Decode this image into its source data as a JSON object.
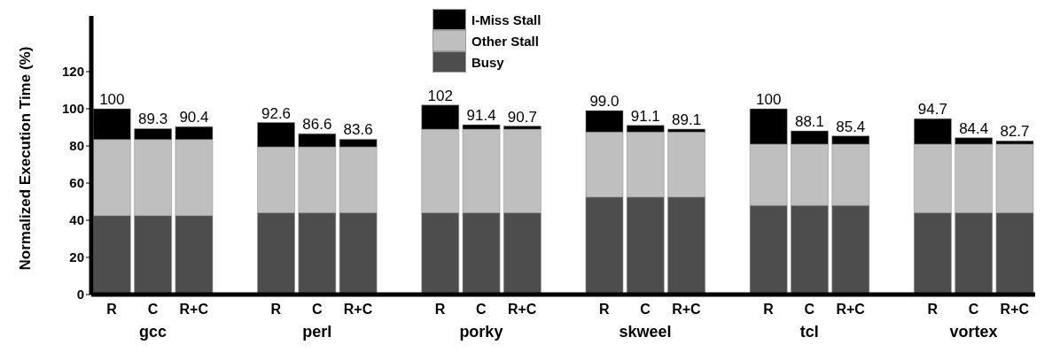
{
  "chart_data": {
    "type": "bar",
    "stacked": true,
    "ylabel": "Normalized Execution Time (%)",
    "categories": [
      "R",
      "C",
      "R+C",
      null,
      "R",
      "C",
      "R+C",
      null,
      "R",
      "C",
      "R+C",
      null,
      "R",
      "C",
      "R+C",
      null,
      "R",
      "C",
      "R+C",
      null,
      "R",
      "C",
      "R+C"
    ],
    "annotations": [
      "gcc",
      "perl",
      "porky",
      "skweel",
      "tcl",
      "vortex"
    ],
    "series": [
      {
        "name": "Busy",
        "color": "#4d4d4d",
        "values": [
          42.5,
          42.5,
          42.5,
          null,
          44,
          44,
          44,
          null,
          44,
          44,
          44,
          null,
          52.5,
          52.5,
          52.5,
          null,
          48,
          48,
          48,
          null,
          44,
          44,
          44
        ]
      },
      {
        "name": "Other Stall",
        "color": "#bfbfbf",
        "values": [
          41,
          41,
          41,
          null,
          35.5,
          35.5,
          35.5,
          null,
          45,
          45,
          45,
          null,
          35,
          35,
          35,
          null,
          33,
          33,
          33,
          null,
          37,
          37,
          37
        ]
      },
      {
        "name": "I-Miss Stall",
        "color": "#000000",
        "values": [
          16.5,
          5.8,
          6.9,
          null,
          13.1,
          7.1,
          4.1,
          null,
          13,
          2.4,
          1.7,
          null,
          11.5,
          3.6,
          1.6,
          null,
          19,
          7.1,
          4.4,
          null,
          13.7,
          3.4,
          1.7
        ]
      }
    ],
    "totals": [
      "100",
      "89.3",
      "90.4",
      null,
      "92.6",
      "86.6",
      "83.6",
      null,
      "102",
      "91.4",
      "90.7",
      null,
      "99.0",
      "91.1",
      "89.1",
      null,
      "100",
      "88.1",
      "85.4",
      null,
      "94.7",
      "84.4",
      "82.7"
    ],
    "ylim": [
      0,
      150
    ],
    "yticks": [
      0,
      20,
      40,
      60,
      80,
      100,
      120
    ],
    "legend": "top"
  }
}
